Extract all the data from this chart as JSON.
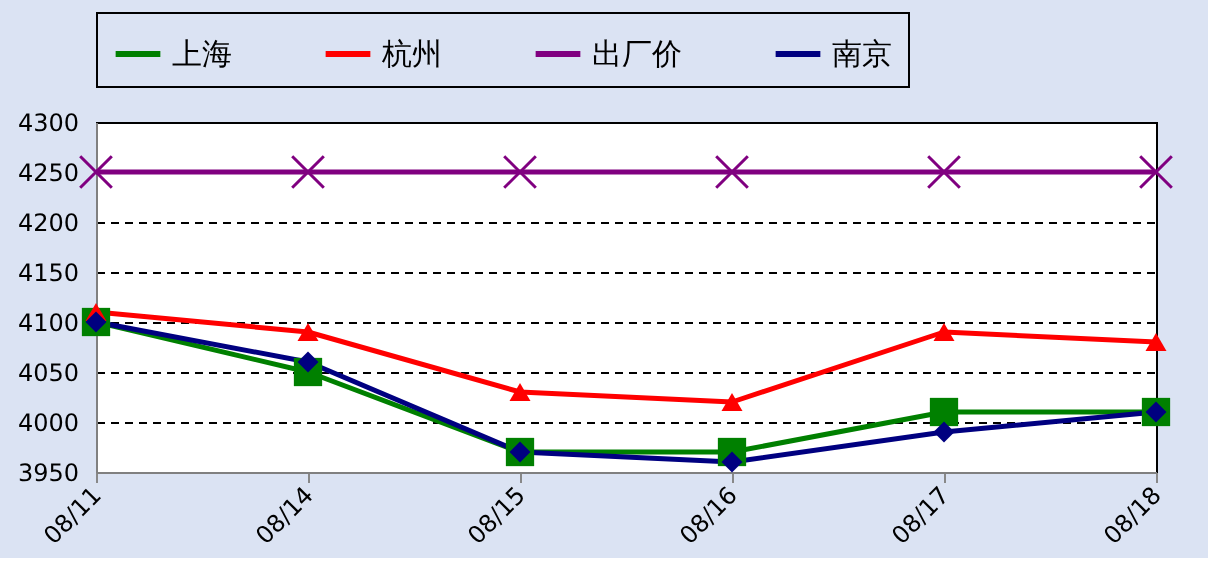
{
  "chart_data": {
    "type": "line",
    "categories": [
      "08/11",
      "08/14",
      "08/15",
      "08/16",
      "08/17",
      "08/18"
    ],
    "series": [
      {
        "name": "上海",
        "color": "#008000",
        "marker": "square",
        "values": [
          4100,
          4050,
          3970,
          3970,
          4010,
          4010
        ]
      },
      {
        "name": "杭州",
        "color": "#ff0000",
        "marker": "triangle",
        "values": [
          4110,
          4090,
          4030,
          4020,
          4090,
          4080
        ]
      },
      {
        "name": "出厂价",
        "color": "#800080",
        "marker": "cross",
        "values": [
          4250,
          4250,
          4250,
          4250,
          4250,
          4250
        ]
      },
      {
        "name": "南京",
        "color": "#000080",
        "marker": "diamond",
        "values": [
          4100,
          4060,
          3970,
          3960,
          3990,
          4010
        ]
      }
    ],
    "ylim": [
      3950,
      4300
    ],
    "yticks": [
      3950,
      4000,
      4050,
      4100,
      4150,
      4200,
      4250,
      4300
    ],
    "grid": "y",
    "legend": "top",
    "line_style": "solid"
  }
}
